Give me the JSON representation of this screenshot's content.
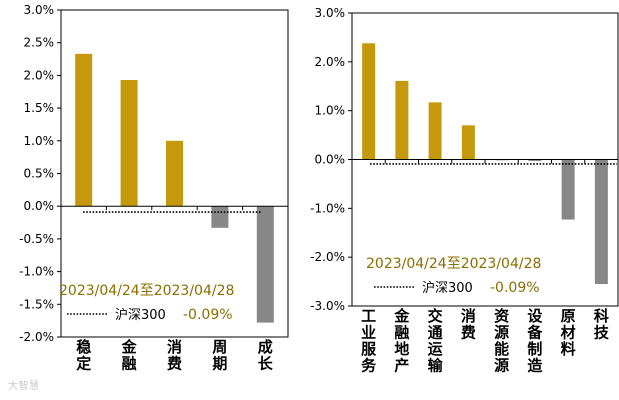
{
  "chart_data": [
    {
      "type": "bar",
      "title": "",
      "categories": [
        "稳定",
        "金融",
        "消费",
        "周期",
        "成长"
      ],
      "values": [
        2.33,
        1.93,
        1.0,
        -0.33,
        -1.78
      ],
      "ylim": [
        -2.0,
        3.0
      ],
      "yticks": [
        "3.0%",
        "2.5%",
        "2.0%",
        "1.5%",
        "1.0%",
        "0.5%",
        "0.0%",
        "-0.5%",
        "-1.0%",
        "-1.5%",
        "-2.0%"
      ],
      "benchmark": {
        "value": -0.09
      },
      "legend": {
        "date_range": "2023/04/24至2023/04/28",
        "benchmark_name": "沪深300",
        "benchmark_value": "-0.09%"
      },
      "colors": {
        "positive": "#C49A0C",
        "negative": "#878787",
        "legend_text": "#8B6E00"
      }
    },
    {
      "type": "bar",
      "title": "",
      "categories": [
        "工业服务",
        "金融地产",
        "交通运输",
        "消费",
        "资源能源",
        "设备制造",
        "原材料",
        "科技"
      ],
      "values": [
        2.38,
        1.61,
        1.17,
        0.7,
        -0.01,
        -0.03,
        -1.23,
        -2.55
      ],
      "ylim": [
        -3.0,
        3.0
      ],
      "yticks": [
        "3.0%",
        "2.0%",
        "1.0%",
        "0.0%",
        "-1.0%",
        "-2.0%",
        "-3.0%"
      ],
      "benchmark": {
        "value": -0.09
      },
      "legend": {
        "date_range": "2023/04/24至2023/04/28",
        "benchmark_name": "沪深300",
        "benchmark_value": "-0.09%"
      },
      "colors": {
        "positive": "#C49A0C",
        "negative": "#878787",
        "legend_text": "#8B6E00"
      }
    }
  ],
  "watermark": "大智慧"
}
